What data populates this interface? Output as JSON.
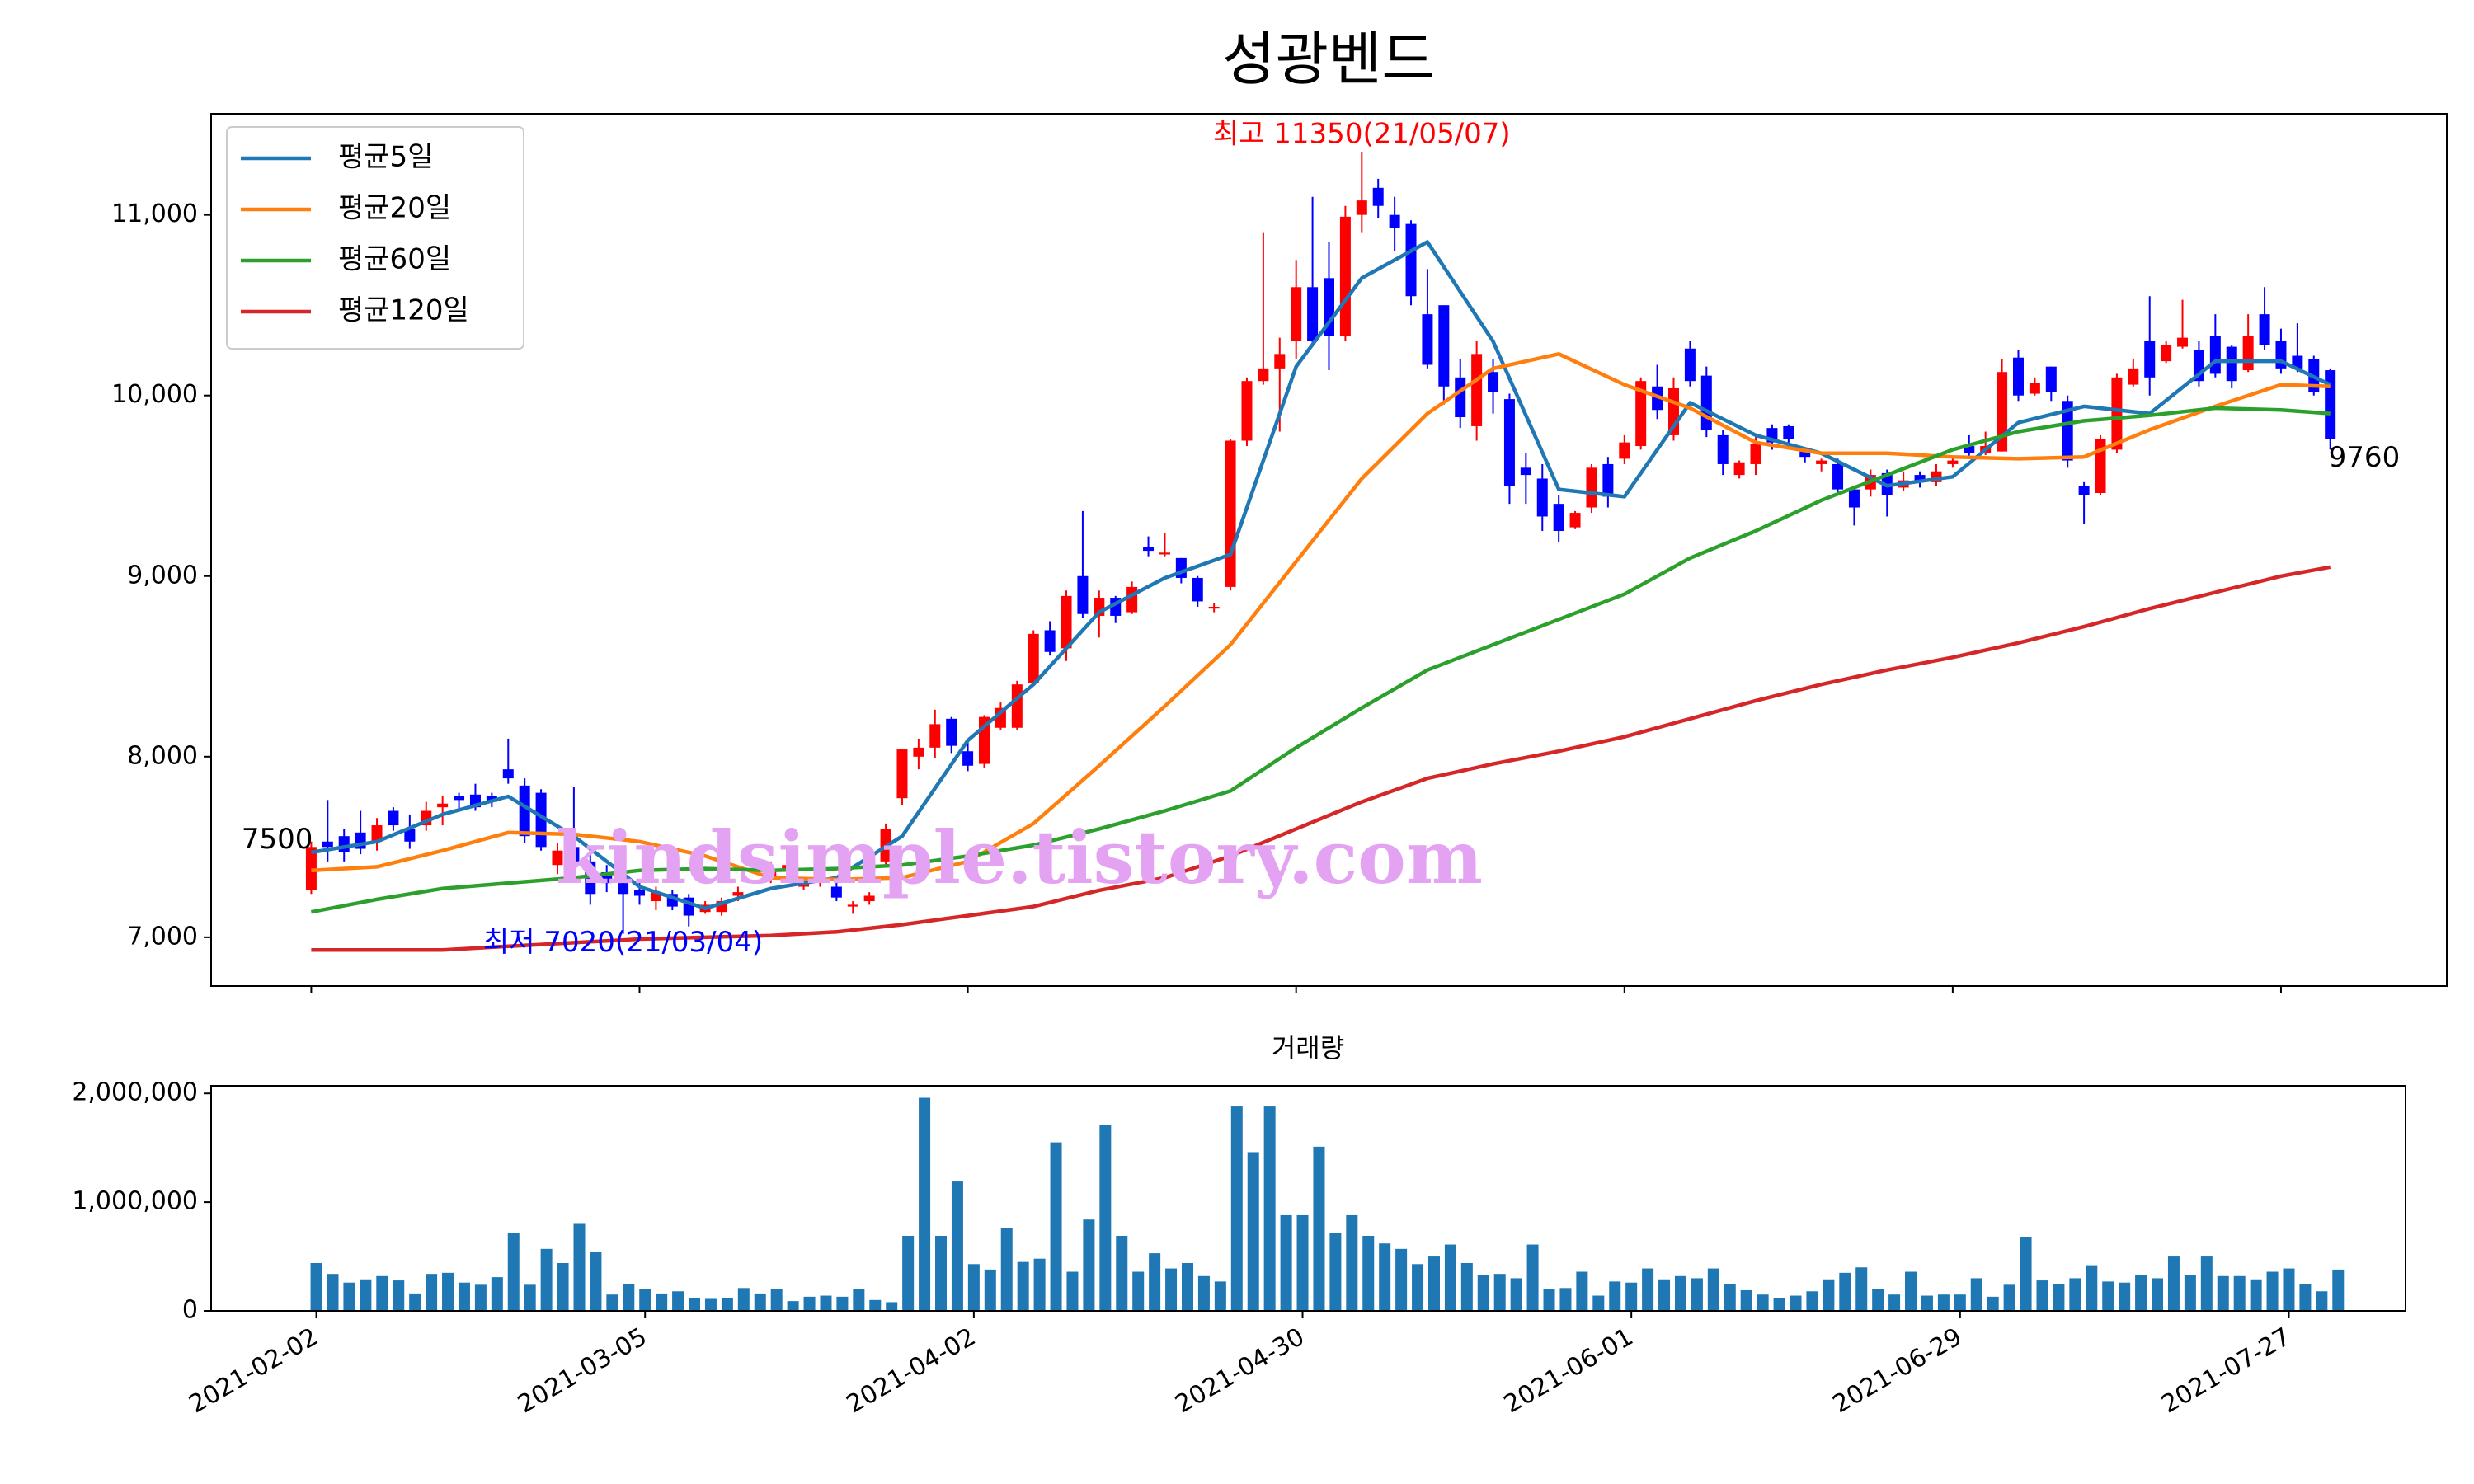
{
  "chart_data": [
    {
      "type": "candlestick",
      "title": "성광벤드",
      "up_color": "#ff0000",
      "down_color": "#0000ff",
      "xlim": [
        -6.1,
        130.1
      ],
      "ylim": [
        6730,
        11560
      ],
      "yticks": [
        {
          "value": 7000,
          "label": "7,000"
        },
        {
          "value": 8000,
          "label": "8,000"
        },
        {
          "value": 9000,
          "label": "9,000"
        },
        {
          "value": 10000,
          "label": "10,000"
        },
        {
          "value": 11000,
          "label": "11,000"
        }
      ],
      "open": [
        7260,
        7530,
        7560,
        7580,
        7530,
        7700,
        7600,
        7620,
        7720,
        7780,
        7790,
        7780,
        7930,
        7840,
        7800,
        7400,
        7500,
        7420,
        7360,
        7300,
        7260,
        7200,
        7240,
        7220,
        7140,
        7140,
        7230,
        7380,
        7340,
        7380,
        7280,
        7320,
        7280,
        7170,
        7200,
        7420,
        7770,
        8000,
        8050,
        8210,
        8030,
        7960,
        8160,
        8160,
        8410,
        8700,
        8600,
        9000,
        8780,
        8880,
        8800,
        9160,
        9120,
        9100,
        8990,
        8820,
        8940,
        9750,
        10080,
        10150,
        10300,
        10600,
        10650,
        10330,
        11000,
        11150,
        11000,
        10950,
        10450,
        10500,
        10100,
        9830,
        10130,
        9980,
        9600,
        9540,
        9400,
        9270,
        9380,
        9620,
        9650,
        9720,
        10050,
        9780,
        10260,
        10110,
        9780,
        9560,
        9620,
        9820,
        9830,
        9690,
        9620,
        9620,
        9480,
        9480,
        9570,
        9490,
        9560,
        9520,
        9620,
        9720,
        9680,
        9690,
        10210,
        10010,
        10160,
        9970,
        9500,
        9460,
        9700,
        10060,
        10300,
        10190,
        10270,
        10250,
        10330,
        10270,
        10140,
        10450,
        10300,
        10220,
        10200,
        10140
      ],
      "high": [
        7530,
        7760,
        7600,
        7700,
        7660,
        7720,
        7680,
        7750,
        7780,
        7800,
        7850,
        7800,
        8100,
        7880,
        7820,
        7520,
        7830,
        7480,
        7400,
        7340,
        7300,
        7280,
        7260,
        7240,
        7200,
        7220,
        7280,
        7420,
        7420,
        7440,
        7330,
        7360,
        7320,
        7200,
        7250,
        7630,
        8040,
        8100,
        8260,
        8220,
        8080,
        8230,
        8300,
        8420,
        8700,
        8750,
        8920,
        9360,
        8920,
        8890,
        8970,
        9220,
        9240,
        9100,
        9000,
        8850,
        9760,
        10100,
        10900,
        10320,
        10750,
        11100,
        10850,
        11050,
        11350,
        11200,
        11100,
        10970,
        10700,
        10500,
        10200,
        10300,
        10200,
        10010,
        9680,
        9620,
        9450,
        9360,
        9620,
        9660,
        9780,
        10100,
        10170,
        10100,
        10300,
        10160,
        9810,
        9640,
        9770,
        9840,
        9840,
        9710,
        9650,
        9650,
        9500,
        9590,
        9590,
        9580,
        9580,
        9620,
        9650,
        9780,
        9800,
        10200,
        10250,
        10100,
        10160,
        10000,
        9520,
        9780,
        10120,
        10200,
        10550,
        10300,
        10530,
        10300,
        10450,
        10280,
        10450,
        10600,
        10370,
        10400,
        10220,
        10150
      ],
      "low": [
        7240,
        7420,
        7420,
        7460,
        7480,
        7590,
        7490,
        7590,
        7620,
        7700,
        7700,
        7720,
        7850,
        7520,
        7480,
        7350,
        7390,
        7180,
        7250,
        7020,
        7180,
        7150,
        7150,
        7060,
        7130,
        7120,
        7200,
        7350,
        7300,
        7330,
        7260,
        7280,
        7200,
        7130,
        7180,
        7400,
        7730,
        7930,
        7990,
        8020,
        7920,
        7940,
        8150,
        8150,
        8400,
        8560,
        8530,
        8770,
        8660,
        8740,
        8790,
        9110,
        9110,
        8960,
        8830,
        8800,
        8920,
        9720,
        10060,
        9800,
        10200,
        10280,
        10140,
        10300,
        10900,
        10980,
        10800,
        10500,
        10150,
        9950,
        9820,
        9750,
        9900,
        9400,
        9400,
        9250,
        9190,
        9260,
        9350,
        9380,
        9620,
        9700,
        9870,
        9750,
        10050,
        9770,
        9560,
        9540,
        9560,
        9700,
        9700,
        9630,
        9580,
        9450,
        9280,
        9440,
        9330,
        9470,
        9490,
        9500,
        9600,
        9650,
        9670,
        9690,
        9970,
        10000,
        9970,
        9600,
        9290,
        9450,
        9680,
        10050,
        10000,
        10180,
        10260,
        10050,
        10100,
        10040,
        10130,
        10250,
        10120,
        10130,
        10000,
        9700
      ],
      "close": [
        7500,
        7500,
        7470,
        7490,
        7620,
        7620,
        7530,
        7700,
        7740,
        7760,
        7720,
        7750,
        7880,
        7560,
        7500,
        7480,
        7420,
        7240,
        7300,
        7240,
        7230,
        7250,
        7170,
        7120,
        7180,
        7200,
        7250,
        7360,
        7380,
        7400,
        7300,
        7340,
        7220,
        7180,
        7230,
        7600,
        8040,
        8050,
        8180,
        8060,
        7950,
        8220,
        8270,
        8400,
        8680,
        8580,
        8890,
        8790,
        8880,
        8780,
        8940,
        9140,
        9130,
        8990,
        8860,
        8830,
        9750,
        10080,
        10150,
        10230,
        10600,
        10300,
        10330,
        10990,
        11080,
        11050,
        10930,
        10550,
        10170,
        10050,
        9880,
        10230,
        10020,
        9500,
        9560,
        9330,
        9250,
        9350,
        9600,
        9440,
        9740,
        10080,
        9920,
        10040,
        10080,
        9810,
        9620,
        9630,
        9730,
        9740,
        9760,
        9660,
        9640,
        9480,
        9380,
        9560,
        9450,
        9530,
        9520,
        9580,
        9640,
        9680,
        9720,
        10130,
        10000,
        10070,
        10020,
        9640,
        9450,
        9760,
        10100,
        10150,
        10100,
        10280,
        10320,
        10080,
        10120,
        10080,
        10330,
        10280,
        10150,
        10150,
        10020,
        9760
      ],
      "series": [
        {
          "name": "평균5일",
          "color": "#1f77b4",
          "x": [
            0,
            4,
            8,
            12,
            16,
            20,
            24,
            28,
            32,
            36,
            40,
            44,
            48,
            52,
            56,
            60,
            64,
            68,
            72,
            76,
            80,
            84,
            88,
            92,
            96,
            100,
            104,
            108,
            112,
            116,
            120,
            123
          ],
          "values": [
            7470,
            7530,
            7680,
            7780,
            7560,
            7280,
            7160,
            7270,
            7330,
            7560,
            8090,
            8400,
            8800,
            8990,
            9120,
            10160,
            10650,
            10850,
            10300,
            9480,
            9440,
            9960,
            9780,
            9680,
            9500,
            9550,
            9850,
            9940,
            9900,
            10190,
            10190,
            10060
          ]
        },
        {
          "name": "평균20일",
          "color": "#ff7f0e",
          "x": [
            0,
            4,
            8,
            12,
            16,
            20,
            24,
            28,
            32,
            36,
            40,
            44,
            48,
            52,
            56,
            60,
            64,
            68,
            72,
            76,
            80,
            84,
            88,
            92,
            96,
            100,
            104,
            108,
            112,
            116,
            120,
            123
          ],
          "values": [
            7370,
            7390,
            7480,
            7580,
            7570,
            7530,
            7450,
            7330,
            7320,
            7330,
            7420,
            7630,
            7950,
            8280,
            8620,
            9080,
            9540,
            9900,
            10150,
            10230,
            10060,
            9930,
            9740,
            9680,
            9680,
            9660,
            9650,
            9660,
            9810,
            9940,
            10060,
            10050
          ]
        },
        {
          "name": "평균60일",
          "color": "#2ca02c",
          "x": [
            0,
            4,
            8,
            12,
            16,
            20,
            24,
            28,
            32,
            36,
            40,
            44,
            48,
            52,
            56,
            60,
            64,
            68,
            72,
            76,
            80,
            84,
            88,
            92,
            96,
            100,
            104,
            108,
            112,
            116,
            120,
            123
          ],
          "values": [
            7140,
            7210,
            7270,
            7300,
            7330,
            7370,
            7380,
            7370,
            7380,
            7400,
            7450,
            7510,
            7600,
            7700,
            7810,
            8050,
            8270,
            8480,
            8620,
            8760,
            8900,
            9100,
            9250,
            9420,
            9560,
            9700,
            9800,
            9860,
            9890,
            9930,
            9920,
            9900
          ]
        },
        {
          "name": "평균120일",
          "color": "#d62728",
          "x": [
            0,
            4,
            8,
            12,
            16,
            20,
            24,
            28,
            32,
            36,
            40,
            44,
            48,
            52,
            56,
            60,
            64,
            68,
            72,
            76,
            80,
            84,
            88,
            92,
            96,
            100,
            104,
            108,
            112,
            116,
            120,
            123
          ],
          "values": [
            6930,
            6930,
            6930,
            6950,
            6970,
            6990,
            7000,
            7010,
            7030,
            7070,
            7120,
            7170,
            7260,
            7330,
            7450,
            7600,
            7750,
            7880,
            7960,
            8030,
            8110,
            8210,
            8310,
            8400,
            8480,
            8550,
            8630,
            8720,
            8820,
            8910,
            9000,
            9050
          ]
        }
      ],
      "legend": "upper left",
      "high_label": "최고 11350(21/05/07)",
      "low_label": "최저 7020(21/03/04)",
      "first_close_label": "7500",
      "last_close_label": "9760"
    },
    {
      "type": "bar",
      "title": "거래량",
      "color": "#1f77b4",
      "xlim": [
        -6.4,
        127.1
      ],
      "ylim": [
        0,
        2070000
      ],
      "yticks": [
        0,
        {
          "value": 1000000,
          "label": "1,000,000"
        },
        {
          "value": 2000000,
          "label": "2,000,000"
        }
      ],
      "categories": [
        "2021-02-02",
        null,
        null,
        null,
        null,
        null,
        null,
        null,
        null,
        null,
        null,
        null,
        null,
        null,
        null,
        null,
        null,
        null,
        null,
        null,
        "2021-03-05",
        null,
        null,
        null,
        null,
        null,
        null,
        null,
        null,
        null,
        null,
        null,
        null,
        null,
        null,
        null,
        null,
        null,
        null,
        null,
        "2021-04-02",
        null,
        null,
        null,
        null,
        null,
        null,
        null,
        null,
        null,
        null,
        null,
        null,
        null,
        null,
        null,
        null,
        null,
        null,
        null,
        "2021-04-30",
        null,
        null,
        null,
        null,
        null,
        null,
        null,
        null,
        null,
        null,
        null,
        null,
        null,
        null,
        null,
        null,
        null,
        null,
        null,
        "2021-06-01",
        null,
        null,
        null,
        null,
        null,
        null,
        null,
        null,
        null,
        null,
        null,
        null,
        null,
        null,
        null,
        null,
        null,
        null,
        null,
        "2021-06-29",
        null,
        null,
        null,
        null,
        null,
        null,
        null,
        null,
        null,
        null,
        null,
        null,
        null,
        null,
        null,
        null,
        null,
        null,
        null,
        "2021-07-27",
        null,
        null,
        null
      ],
      "values": [
        440000,
        340000,
        260000,
        290000,
        320000,
        280000,
        160000,
        340000,
        350000,
        260000,
        240000,
        310000,
        720000,
        240000,
        570000,
        440000,
        800000,
        540000,
        150000,
        250000,
        200000,
        160000,
        180000,
        120000,
        110000,
        120000,
        210000,
        160000,
        200000,
        90000,
        130000,
        140000,
        130000,
        200000,
        100000,
        80000,
        690000,
        1960000,
        690000,
        1190000,
        430000,
        380000,
        760000,
        450000,
        480000,
        1550000,
        360000,
        840000,
        1710000,
        690000,
        360000,
        530000,
        390000,
        440000,
        320000,
        270000,
        1880000,
        1460000,
        1880000,
        880000,
        880000,
        1510000,
        720000,
        880000,
        690000,
        620000,
        570000,
        430000,
        500000,
        610000,
        440000,
        330000,
        340000,
        300000,
        610000,
        200000,
        210000,
        360000,
        140000,
        270000,
        260000,
        390000,
        290000,
        320000,
        300000,
        390000,
        250000,
        190000,
        150000,
        120000,
        140000,
        180000,
        290000,
        350000,
        400000,
        200000,
        150000,
        360000,
        140000,
        150000,
        150000,
        300000,
        130000,
        240000,
        680000,
        280000,
        250000,
        300000,
        420000,
        270000,
        260000,
        330000,
        300000,
        500000,
        330000,
        500000,
        320000,
        320000,
        290000,
        360000,
        390000,
        250000,
        180000,
        380000
      ]
    }
  ],
  "watermark": "kindsimple.tistory.com"
}
